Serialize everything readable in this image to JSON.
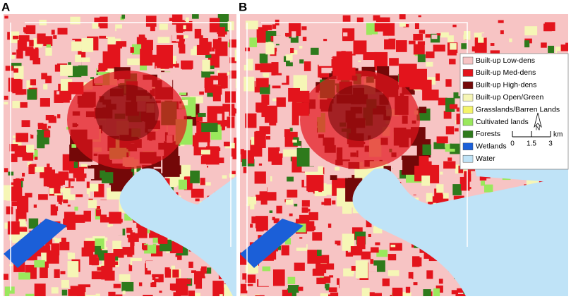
{
  "panels": [
    {
      "label": "A"
    },
    {
      "label": "B"
    }
  ],
  "legend": [
    {
      "label": "Built-up Low-dens",
      "color": "#f7c4c4"
    },
    {
      "label": "Built-up Med-dens",
      "color": "#e3141c"
    },
    {
      "label": "Built-up High-dens",
      "color": "#740808"
    },
    {
      "label": "Built-up Open/Green",
      "color": "#f6f6b6"
    },
    {
      "label": "Grasslands/Barren Lands",
      "color": "#f4f46a"
    },
    {
      "label": "Cultivated lands",
      "color": "#9ae85c"
    },
    {
      "label": "Forests",
      "color": "#2e7a1c"
    },
    {
      "label": "Wetlands",
      "color": "#1b5fd8"
    },
    {
      "label": "Water",
      "color": "#bfe3f7"
    }
  ],
  "north_arrow": "N",
  "scale_bar": {
    "unit": "km",
    "ticks": [
      0,
      1.5,
      3
    ]
  }
}
